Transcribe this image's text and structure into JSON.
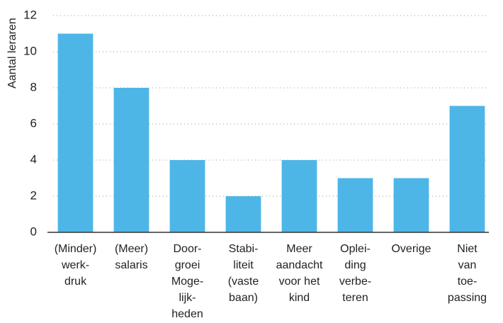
{
  "chart_data": {
    "type": "bar",
    "y_label": "Aantal leraren",
    "categories": [
      [
        "(Minder)",
        "werk-",
        "druk"
      ],
      [
        "(Meer)",
        "salaris"
      ],
      [
        "Door-",
        "groei",
        "Moge-",
        "lijk-",
        "heden"
      ],
      [
        "Stabi-",
        "liteit",
        "(vaste",
        "baan)"
      ],
      [
        "Meer",
        "aandacht",
        "voor het",
        "kind"
      ],
      [
        "Oplei-",
        "ding",
        "verbe-",
        "teren"
      ],
      [
        "Overige"
      ],
      [
        "Niet",
        "van",
        "toe-",
        "passing"
      ]
    ],
    "values": [
      11,
      8,
      4,
      2,
      4,
      3,
      3,
      7
    ],
    "color": "#4db6e6",
    "ylim": [
      0,
      12
    ],
    "yticks": [
      0,
      2,
      4,
      6,
      8,
      10,
      12
    ],
    "grid": true
  }
}
